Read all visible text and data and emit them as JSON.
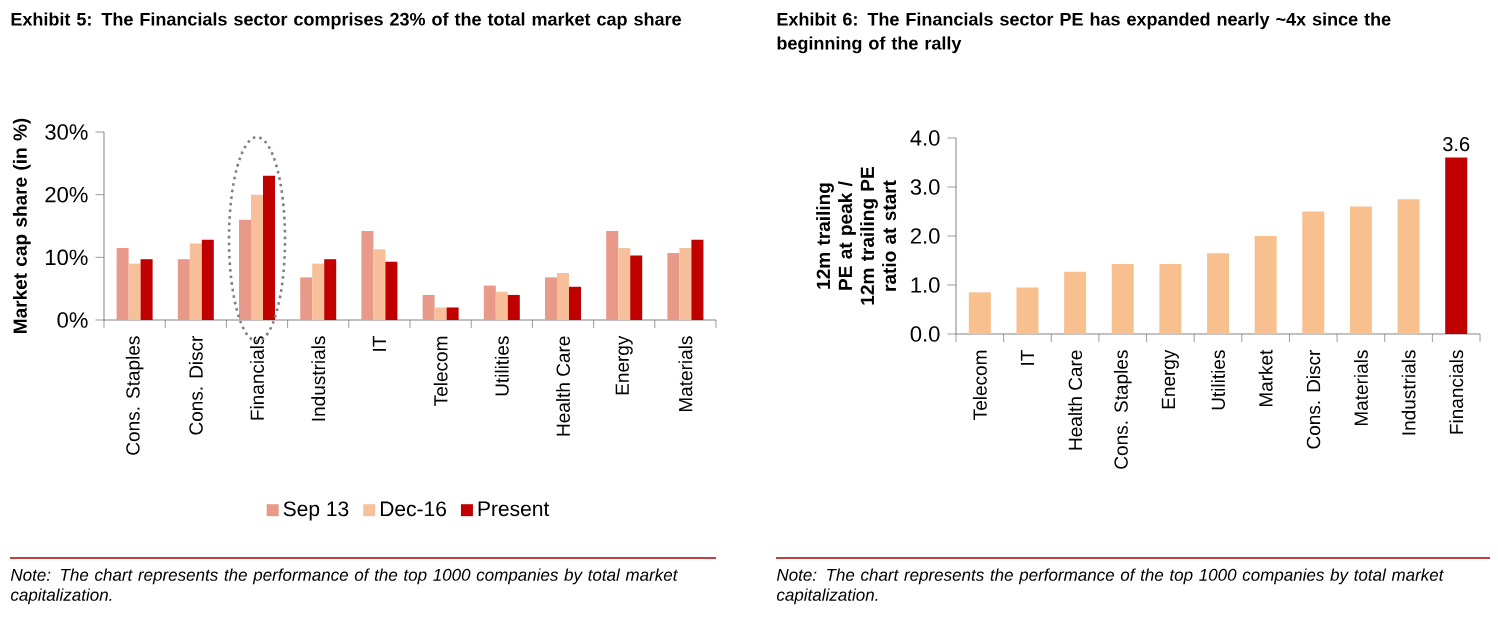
{
  "chart_data": [
    {
      "type": "bar",
      "title": "Exhibit 5: The Financials sector comprises 23% of the total market cap share",
      "ylabel": "Market cap share (in %)",
      "categories": [
        "Cons. Staples",
        "Cons. Discr",
        "Financials",
        "Industrials",
        "IT",
        "Telecom",
        "Utilities",
        "Health Care",
        "Energy",
        "Materials"
      ],
      "series": [
        {
          "name": "Sep 13",
          "color": "#e9998a",
          "values": [
            11.5,
            9.7,
            16,
            6.8,
            14.2,
            4,
            5.5,
            6.8,
            14.2,
            10.7
          ]
        },
        {
          "name": "Dec-16",
          "color": "#f8c09a",
          "values": [
            9,
            12.2,
            20,
            9,
            11.3,
            2,
            4.5,
            7.5,
            11.5,
            11.5
          ]
        },
        {
          "name": "Present",
          "color": "#c00000",
          "values": [
            9.7,
            12.8,
            23,
            9.7,
            9.3,
            2,
            4,
            5.3,
            10.3,
            12.8
          ]
        }
      ],
      "ylim": [
        0,
        30
      ],
      "yticks": [
        {
          "value": 0,
          "label": "0%"
        },
        {
          "value": 10,
          "label": "10%"
        },
        {
          "value": 20,
          "label": "20%"
        },
        {
          "value": 30,
          "label": "30%"
        }
      ],
      "legend": "bottom",
      "annotations": [
        "Note: The chart represents the performance of the top 1000 companies by total market capitalization."
      ]
    },
    {
      "type": "bar",
      "title": "Exhibit 6: The Financials sector PE has expanded nearly ~4x since the beginning of the rally",
      "ylabel": "12m trailing PE at peak / 12m trailing PE ratio at start",
      "categories": [
        "Telecom",
        "IT",
        "Health Care",
        "Cons. Staples",
        "Energy",
        "Utilities",
        "Market",
        "Cons. Discr",
        "Materials",
        "Industrials",
        "Financials"
      ],
      "values": [
        0.85,
        0.95,
        1.27,
        1.43,
        1.43,
        1.65,
        2.0,
        2.5,
        2.6,
        2.75,
        3.6
      ],
      "colors": [
        "#f9c08f",
        "#f9c08f",
        "#f9c08f",
        "#f9c08f",
        "#f9c08f",
        "#f9c08f",
        "#f9c08f",
        "#f9c08f",
        "#f9c08f",
        "#f9c08f",
        "#c00000"
      ],
      "value_labels": [
        null,
        null,
        null,
        null,
        null,
        null,
        null,
        null,
        null,
        null,
        "3.6"
      ],
      "ylim": [
        0,
        4
      ],
      "yticks": [
        {
          "value": 0,
          "label": "0.0"
        },
        {
          "value": 1,
          "label": "1.0"
        },
        {
          "value": 2,
          "label": "2.0"
        },
        {
          "value": 3,
          "label": "3.0"
        },
        {
          "value": 4,
          "label": "4.0"
        }
      ],
      "legend": false,
      "annotations": [
        "Note: The chart represents the performance of the top 1000 companies by total market capitalization."
      ]
    }
  ]
}
